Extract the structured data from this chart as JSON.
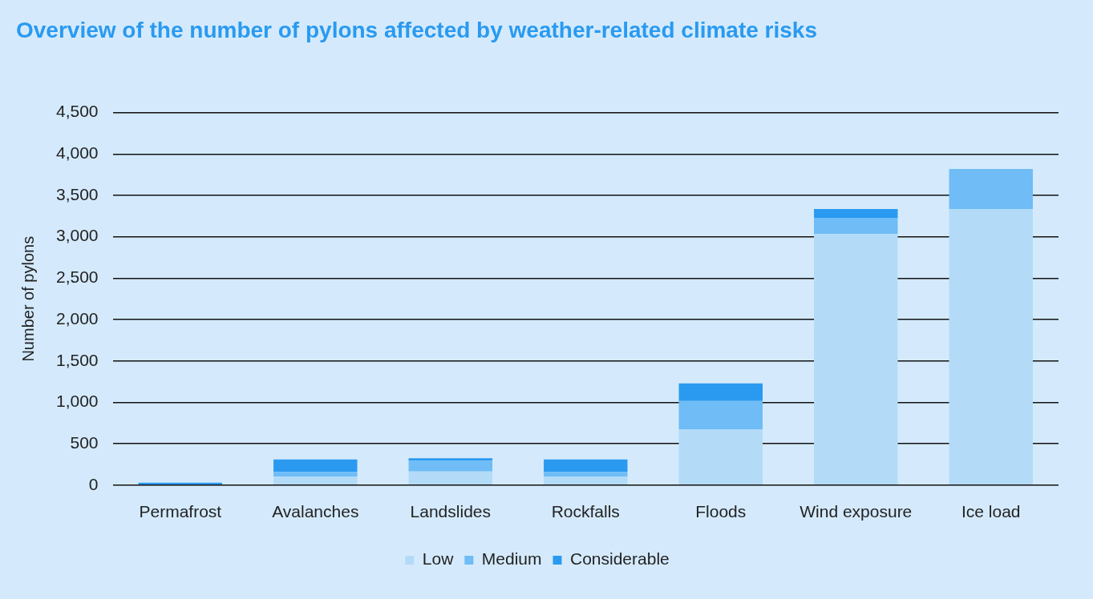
{
  "chart_data": {
    "type": "bar",
    "title": "Overview of the number of pylons affected by weather-related climate risks",
    "ylabel": "Number of pylons",
    "categories": [
      "Permafrost",
      "Avalanches",
      "Landslides",
      "Rockfalls",
      "Floods",
      "Wind exposure",
      "Ice load"
    ],
    "stacked": true,
    "series": [
      {
        "name": "Low",
        "color": "#b3dbf8",
        "values": [
          0,
          105,
          165,
          105,
          675,
          3035,
          3335
        ]
      },
      {
        "name": "Medium",
        "color": "#6fbcf6",
        "values": [
          0,
          55,
          130,
          55,
          340,
          195,
          485
        ]
      },
      {
        "name": "Considerable",
        "color": "#2a9af0",
        "values": [
          30,
          150,
          30,
          150,
          215,
          105,
          0
        ]
      }
    ],
    "ylim": [
      0,
      4500
    ],
    "yticks": [
      0,
      {
        "value": 500,
        "label": "500"
      },
      {
        "value": 1000,
        "label": "1,000"
      },
      {
        "value": 1500,
        "label": "1,500"
      },
      {
        "value": 2000,
        "label": "2,000"
      },
      {
        "value": 2500,
        "label": "2,500"
      },
      {
        "value": 3000,
        "label": "3,000"
      },
      {
        "value": 3500,
        "label": "3,500"
      },
      {
        "value": 4000,
        "label": "4,000"
      },
      {
        "value": 4500,
        "label": "4,500"
      }
    ],
    "grid": "y",
    "legend": "bottom"
  }
}
